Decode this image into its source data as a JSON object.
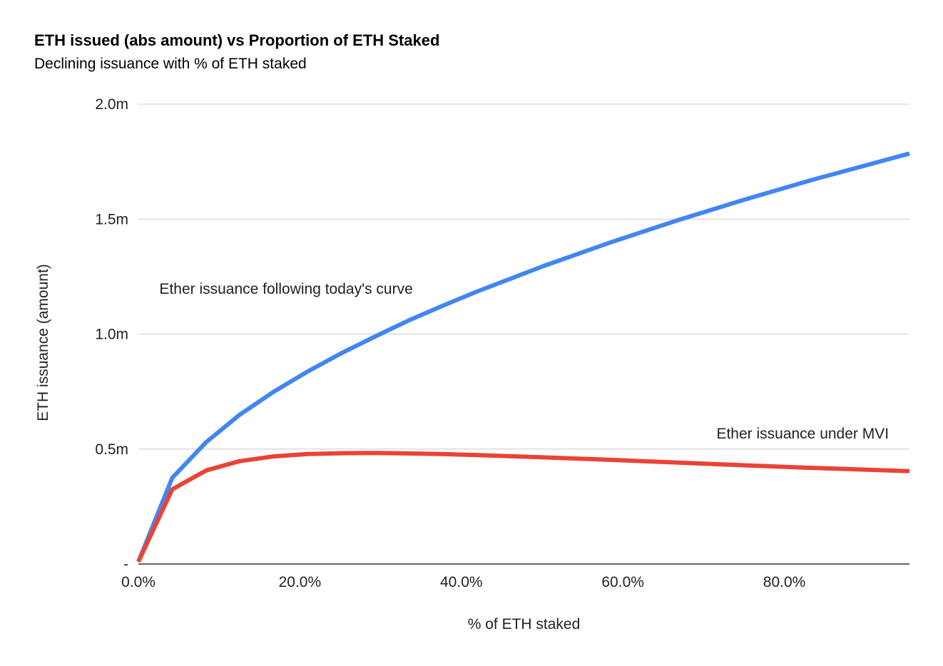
{
  "chart_data": {
    "type": "line",
    "title": "ETH issued (abs amount) vs Proportion of ETH Staked",
    "subtitle": "Declining issuance with % of ETH staked",
    "xlabel": "% of ETH staked",
    "ylabel": "ETH issuance (amount)",
    "xlim": [
      0,
      95.5
    ],
    "ylim": [
      0,
      2000000
    ],
    "x_ticks": [
      {
        "value": 0,
        "label": "0.0%"
      },
      {
        "value": 20,
        "label": "20.0%"
      },
      {
        "value": 40,
        "label": "40.0%"
      },
      {
        "value": 60,
        "label": "60.0%"
      },
      {
        "value": 80,
        "label": "80.0%"
      }
    ],
    "y_ticks": [
      {
        "value": 0,
        "label": "-"
      },
      {
        "value": 500000,
        "label": "0.5m"
      },
      {
        "value": 1000000,
        "label": "1.0m"
      },
      {
        "value": 1500000,
        "label": "1.5m"
      },
      {
        "value": 2000000,
        "label": "2.0m"
      }
    ],
    "grid": true,
    "legend": "none",
    "series": [
      {
        "name": "Ether issuance following today's curve",
        "color": "#4285f4",
        "points": [
          [
            0,
            10000
          ],
          [
            4.2,
            375000
          ],
          [
            8.4,
            530000
          ],
          [
            12.5,
            648000
          ],
          [
            16.7,
            748000
          ],
          [
            20.9,
            836000
          ],
          [
            25.1,
            916000
          ],
          [
            29.3,
            989000
          ],
          [
            33.4,
            1058000
          ],
          [
            37.6,
            1122000
          ],
          [
            41.8,
            1183000
          ],
          [
            50.2,
            1296000
          ],
          [
            58.5,
            1399000
          ],
          [
            66.9,
            1496000
          ],
          [
            75.2,
            1586000
          ],
          [
            83.6,
            1672000
          ],
          [
            95.5,
            1785000
          ]
        ]
      },
      {
        "name": "Ether issuance under MVI",
        "color": "#ea4335",
        "points": [
          [
            0,
            10000
          ],
          [
            4.2,
            325000
          ],
          [
            8.4,
            407000
          ],
          [
            12.5,
            447000
          ],
          [
            16.7,
            468000
          ],
          [
            20.9,
            478000
          ],
          [
            25.1,
            482000
          ],
          [
            29.3,
            483000
          ],
          [
            33.4,
            481000
          ],
          [
            37.6,
            478000
          ],
          [
            41.8,
            474000
          ],
          [
            50.2,
            464000
          ],
          [
            58.5,
            453000
          ],
          [
            66.9,
            441000
          ],
          [
            75.2,
            429000
          ],
          [
            83.6,
            418000
          ],
          [
            95.5,
            404000
          ]
        ]
      }
    ],
    "annotations": [
      {
        "text": "Ether issuance following today's curve",
        "x": 2.6,
        "y": 1175000
      },
      {
        "text": "Ether issuance under MVI",
        "x": 71.6,
        "y": 545000
      }
    ]
  }
}
